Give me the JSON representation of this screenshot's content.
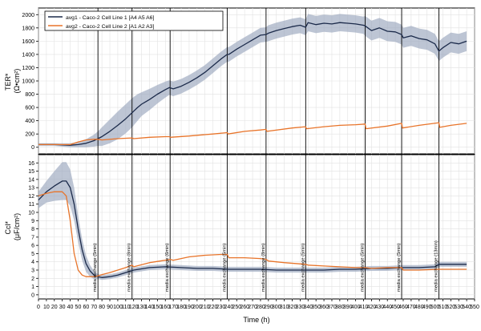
{
  "chart_data": [
    {
      "type": "line",
      "panel": "top",
      "ylabel": [
        "TER*",
        "(Ω•cm²)"
      ],
      "xlabel": "",
      "xlim": [
        0,
        550
      ],
      "ylim": [
        -100,
        2100
      ],
      "yticks": [
        0,
        200,
        400,
        600,
        800,
        1000,
        1200,
        1400,
        1600,
        1800,
        2000
      ],
      "grid": true,
      "legend_position": "top-left",
      "series": [
        {
          "name": "avg1 - Caco-2 Cell Line 1 [A4 A5 A6]",
          "color": "#1b2a4a",
          "band_color": "#9aa6bd",
          "x": [
            0,
            20,
            40,
            50,
            60,
            70,
            75,
            80,
            90,
            100,
            110,
            118,
            125,
            130,
            140,
            150,
            160,
            165,
            170,
            180,
            190,
            200,
            210,
            220,
            230,
            238,
            240,
            250,
            260,
            270,
            280,
            287,
            290,
            300,
            310,
            320,
            330,
            337,
            340,
            350,
            360,
            370,
            380,
            390,
            400,
            410,
            412,
            420,
            430,
            440,
            450,
            458,
            460,
            470,
            480,
            490,
            500,
            505,
            510,
            520,
            530,
            540
          ],
          "y": [
            40,
            40,
            30,
            40,
            60,
            100,
            130,
            160,
            240,
            330,
            430,
            520,
            600,
            650,
            720,
            800,
            870,
            900,
            880,
            920,
            980,
            1050,
            1130,
            1230,
            1330,
            1400,
            1400,
            1480,
            1550,
            1620,
            1690,
            1700,
            1720,
            1760,
            1790,
            1820,
            1840,
            1810,
            1880,
            1850,
            1870,
            1860,
            1880,
            1870,
            1860,
            1840,
            1830,
            1760,
            1800,
            1750,
            1740,
            1700,
            1650,
            1680,
            1640,
            1620,
            1560,
            1450,
            1500,
            1580,
            1560,
            1600
          ],
          "band": [
            20,
            20,
            30,
            40,
            60,
            90,
            110,
            140,
            180,
            210,
            220,
            220,
            200,
            180,
            160,
            140,
            120,
            110,
            110,
            110,
            110,
            110,
            110,
            110,
            110,
            110,
            110,
            110,
            110,
            110,
            110,
            110,
            120,
            120,
            120,
            120,
            120,
            120,
            130,
            130,
            130,
            130,
            130,
            130,
            130,
            130,
            150,
            150,
            150,
            150,
            150,
            150,
            150,
            150,
            150,
            150,
            150,
            150,
            150,
            150,
            150,
            150
          ]
        },
        {
          "name": "avg2 - Caco-2 Cell Line 2 [A1 A2 A3]",
          "color": "#e8742a",
          "x": [
            0,
            20,
            40,
            50,
            60,
            70,
            75,
            80,
            100,
            118,
            120,
            140,
            160,
            165,
            166,
            190,
            200,
            220,
            238,
            239,
            260,
            280,
            287,
            288,
            320,
            337,
            338,
            360,
            380,
            400,
            412,
            413,
            440,
            458,
            459,
            480,
            505,
            506,
            520,
            540
          ],
          "y": [
            40,
            40,
            40,
            80,
            110,
            120,
            120,
            110,
            130,
            140,
            130,
            150,
            160,
            160,
            150,
            170,
            180,
            200,
            220,
            200,
            240,
            260,
            270,
            240,
            290,
            310,
            280,
            310,
            330,
            340,
            350,
            280,
            320,
            360,
            290,
            330,
            370,
            300,
            330,
            360
          ]
        }
      ]
    },
    {
      "type": "line",
      "panel": "bottom",
      "ylabel": [
        "Ccl*",
        "(μF/cm²)"
      ],
      "xlabel": "Time (h)",
      "xlim": [
        0,
        550
      ],
      "ylim": [
        -0.5,
        17
      ],
      "yticks": [
        0,
        1,
        2,
        3,
        4,
        5,
        6,
        7,
        8,
        9,
        10,
        11,
        12,
        13,
        14,
        15,
        16
      ],
      "xticks": [
        0,
        10,
        20,
        30,
        40,
        50,
        60,
        70,
        80,
        90,
        100,
        110,
        120,
        130,
        140,
        150,
        160,
        170,
        180,
        190,
        200,
        210,
        220,
        230,
        240,
        250,
        260,
        270,
        280,
        290,
        300,
        310,
        320,
        330,
        340,
        350,
        360,
        370,
        380,
        390,
        400,
        410,
        420,
        430,
        440,
        450,
        460,
        470,
        480,
        490,
        500,
        510,
        520,
        530,
        540,
        550
      ],
      "grid": true,
      "series": [
        {
          "color": "#1b2a4a",
          "band_color": "#9aa6bd",
          "x": [
            0,
            10,
            20,
            30,
            35,
            40,
            45,
            50,
            55,
            60,
            65,
            70,
            75,
            80,
            90,
            100,
            110,
            120,
            140,
            160,
            180,
            200,
            220,
            240,
            260,
            280,
            300,
            320,
            340,
            360,
            380,
            400,
            420,
            440,
            460,
            480,
            500,
            505,
            520,
            540
          ],
          "y": [
            11.5,
            12.5,
            13.2,
            13.8,
            13.8,
            13.0,
            11.0,
            8.0,
            5.5,
            3.8,
            2.9,
            2.4,
            2.2,
            2.1,
            2.2,
            2.4,
            2.7,
            3.0,
            3.3,
            3.4,
            3.3,
            3.2,
            3.2,
            3.1,
            3.1,
            3.1,
            3.0,
            3.0,
            3.0,
            3.0,
            3.1,
            3.1,
            3.2,
            3.2,
            3.3,
            3.3,
            3.4,
            3.7,
            3.7,
            3.7
          ],
          "band": [
            1.0,
            1.3,
            1.8,
            2.3,
            2.3,
            2.2,
            2.0,
            1.6,
            1.3,
            1.0,
            0.7,
            0.5,
            0.3,
            0.3,
            0.3,
            0.3,
            0.3,
            0.3,
            0.3,
            0.3,
            0.3,
            0.3,
            0.3,
            0.3,
            0.3,
            0.3,
            0.3,
            0.3,
            0.3,
            0.3,
            0.3,
            0.3,
            0.3,
            0.3,
            0.3,
            0.3,
            0.3,
            0.3,
            0.3,
            0.3
          ]
        },
        {
          "color": "#e8742a",
          "x": [
            0,
            10,
            20,
            30,
            35,
            40,
            45,
            50,
            55,
            60,
            65,
            70,
            75,
            78,
            90,
            100,
            110,
            118,
            120,
            140,
            160,
            166,
            170,
            190,
            210,
            230,
            238,
            240,
            260,
            280,
            287,
            290,
            310,
            337,
            340,
            360,
            380,
            400,
            412,
            420,
            440,
            458,
            460,
            480,
            505,
            510,
            540
          ],
          "y": [
            12.0,
            12.3,
            12.5,
            12.5,
            12.0,
            9.0,
            5.0,
            3.0,
            2.4,
            2.2,
            2.2,
            2.2,
            2.3,
            2.4,
            2.7,
            3.0,
            3.3,
            3.6,
            3.4,
            3.9,
            4.2,
            4.3,
            4.2,
            4.6,
            4.8,
            4.9,
            4.9,
            4.5,
            4.5,
            4.4,
            4.3,
            4.1,
            3.9,
            3.7,
            3.6,
            3.5,
            3.4,
            3.3,
            3.3,
            3.2,
            3.3,
            3.3,
            3.0,
            3.0,
            3.1,
            3.1,
            3.1
          ]
        }
      ]
    }
  ],
  "events": {
    "x": [
      75,
      118,
      166,
      238,
      287,
      337,
      412,
      458,
      505
    ],
    "labels": [
      "media exchange (5min)",
      "media exchange (8min)",
      "media exchange (6min)",
      "media exchange (5min)",
      "media exchange (8min)",
      "media exchange (5min)",
      "media exchange (5min)",
      "media exchange (5min)",
      "media exchange (13min)"
    ]
  }
}
